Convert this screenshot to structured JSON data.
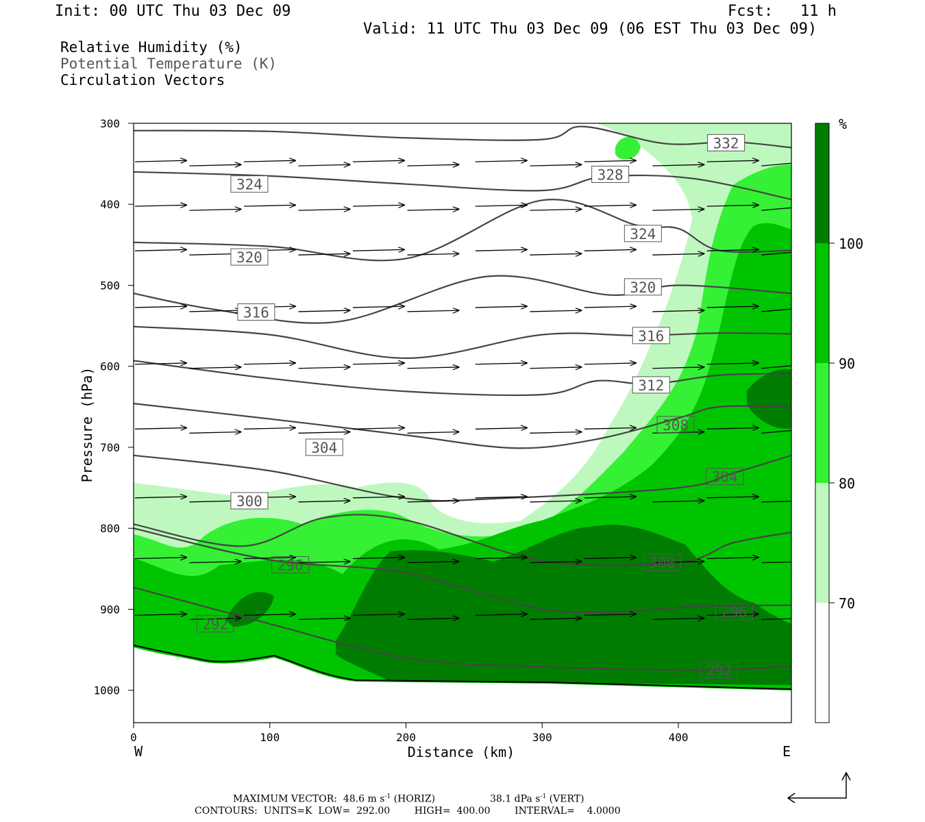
{
  "header": {
    "init": "Init: 00 UTC Thu 03 Dec 09",
    "fcst": "Fcst:   11 h",
    "valid": "Valid: 11 UTC Thu 03 Dec 09 (06 EST Thu 03 Dec 09)"
  },
  "legend": {
    "line1": "Relative Humidity (%)",
    "line2": "Potential Temperature (K)",
    "line3": "Circulation Vectors"
  },
  "colorbar": {
    "unit": "%",
    "labels": [
      "70",
      "80",
      "90",
      "100"
    ],
    "colors": [
      "#ffffff",
      "#bff8bf",
      "#35f035",
      "#00c400",
      "#007d00"
    ]
  },
  "chart_data": {
    "type": "cross-section",
    "xlabel": "Distance (km)",
    "ylabel": "Pressure (hPa)",
    "xlim": [
      0,
      483
    ],
    "ylim": [
      1040,
      300
    ],
    "x_ticks": [
      0,
      100,
      200,
      300,
      400
    ],
    "y_ticks": [
      300,
      400,
      500,
      600,
      700,
      800,
      900,
      1000
    ],
    "x_end_labels": {
      "left": "W",
      "right": "E"
    },
    "theta_contours": [
      {
        "value": 332,
        "points": [
          [
            0,
            309
          ],
          [
            100,
            310
          ],
          [
            200,
            318
          ],
          [
            300,
            320
          ],
          [
            330,
            304
          ],
          [
            390,
            325
          ],
          [
            440,
            323
          ],
          [
            483,
            330
          ]
        ]
      },
      {
        "value": 328,
        "points": [
          [
            0,
            360
          ],
          [
            100,
            365
          ],
          [
            200,
            375
          ],
          [
            300,
            383
          ],
          [
            345,
            366
          ],
          [
            410,
            368
          ],
          [
            483,
            394
          ]
        ]
      },
      {
        "value": 324,
        "points": [
          [
            0,
            447
          ],
          [
            100,
            452
          ],
          [
            200,
            467
          ],
          [
            300,
            395
          ],
          [
            370,
            426
          ],
          [
            400,
            430
          ],
          [
            430,
            457
          ],
          [
            483,
            457
          ]
        ]
      },
      {
        "value": 320,
        "points": [
          [
            0,
            510
          ],
          [
            60,
            530
          ],
          [
            150,
            545
          ],
          [
            260,
            489
          ],
          [
            350,
            512
          ],
          [
            400,
            500
          ],
          [
            483,
            510
          ]
        ]
      },
      {
        "value": 316,
        "points": [
          [
            0,
            551
          ],
          [
            100,
            561
          ],
          [
            200,
            590
          ],
          [
            300,
            561
          ],
          [
            370,
            562
          ],
          [
            430,
            559
          ],
          [
            483,
            560
          ]
        ]
      },
      {
        "value": 312,
        "points": [
          [
            0,
            593
          ],
          [
            100,
            615
          ],
          [
            200,
            631
          ],
          [
            300,
            635
          ],
          [
            340,
            618
          ],
          [
            380,
            622
          ],
          [
            430,
            611
          ],
          [
            483,
            609
          ]
        ]
      },
      {
        "value": 308,
        "points": [
          [
            0,
            646
          ],
          [
            100,
            665
          ],
          [
            200,
            685
          ],
          [
            280,
            701
          ],
          [
            340,
            690
          ],
          [
            400,
            664
          ],
          [
            430,
            650
          ],
          [
            483,
            650
          ]
        ]
      },
      {
        "value": 304,
        "points": [
          [
            0,
            710
          ],
          [
            100,
            729
          ],
          [
            200,
            763
          ],
          [
            270,
            763
          ],
          [
            400,
            750
          ],
          [
            440,
            732
          ],
          [
            483,
            710
          ]
        ]
      },
      {
        "value": 300,
        "points": [
          [
            0,
            795
          ],
          [
            80,
            822
          ],
          [
            140,
            787
          ],
          [
            200,
            790
          ],
          [
            300,
            840
          ],
          [
            400,
            842
          ],
          [
            440,
            818
          ],
          [
            483,
            805
          ]
        ]
      },
      {
        "value": 296,
        "points": [
          [
            0,
            800
          ],
          [
            100,
            839
          ],
          [
            200,
            855
          ],
          [
            310,
            902
          ],
          [
            420,
            896
          ],
          [
            483,
            895
          ]
        ]
      },
      {
        "value": 292,
        "points": [
          [
            0,
            873
          ],
          [
            100,
            918
          ],
          [
            200,
            960
          ],
          [
            300,
            971
          ],
          [
            420,
            975
          ],
          [
            483,
            970
          ]
        ]
      }
    ],
    "rh_regions": [
      {
        "level": "70-80",
        "description": "lower troposphere band and right-side column"
      },
      {
        "level": "80-90"
      },
      {
        "level": "90-100"
      },
      {
        "level": ">100"
      }
    ],
    "vectors": [
      {
        "p": 350,
        "x": [
          0,
          40,
          80,
          120,
          160,
          200,
          250,
          290,
          330,
          380,
          420,
          460
        ]
      },
      {
        "p": 405,
        "x": [
          0,
          40,
          80,
          120,
          160,
          200,
          250,
          290,
          330,
          380,
          420,
          460
        ]
      },
      {
        "p": 460,
        "x": [
          0,
          40,
          80,
          120,
          160,
          200,
          250,
          290,
          330,
          380,
          420,
          460
        ]
      },
      {
        "p": 530,
        "x": [
          0,
          40,
          80,
          120,
          160,
          200,
          250,
          290,
          330,
          380,
          420,
          460
        ]
      },
      {
        "p": 600,
        "x": [
          0,
          40,
          80,
          120,
          160,
          200,
          250,
          290,
          330,
          380,
          420,
          460
        ]
      },
      {
        "p": 680,
        "x": [
          0,
          40,
          80,
          120,
          160,
          200,
          250,
          290,
          330,
          380,
          420,
          460
        ]
      },
      {
        "p": 765,
        "x": [
          0,
          40,
          80,
          120,
          160,
          200,
          250,
          290,
          330,
          380,
          420,
          460
        ]
      },
      {
        "p": 840,
        "x": [
          0,
          40,
          80,
          120,
          160,
          200,
          250,
          290,
          330,
          380,
          420,
          460
        ]
      },
      {
        "p": 910,
        "x": [
          0,
          40,
          80,
          120,
          160,
          200,
          250,
          290,
          330,
          380,
          420,
          460
        ]
      }
    ]
  },
  "footer": {
    "line1_a": "MAXIMUM VECTOR:  48.6 m s",
    "line1_a_sup": "-1",
    "line1_b": " (HORIZ)",
    "line1_c": "38.1 dPa s",
    "line1_c_sup": "-1",
    "line1_d": " (VERT)",
    "line2": "CONTOURS:  UNITS=K  LOW=  292.00        HIGH=  400.00        INTERVAL=    4.0000"
  }
}
